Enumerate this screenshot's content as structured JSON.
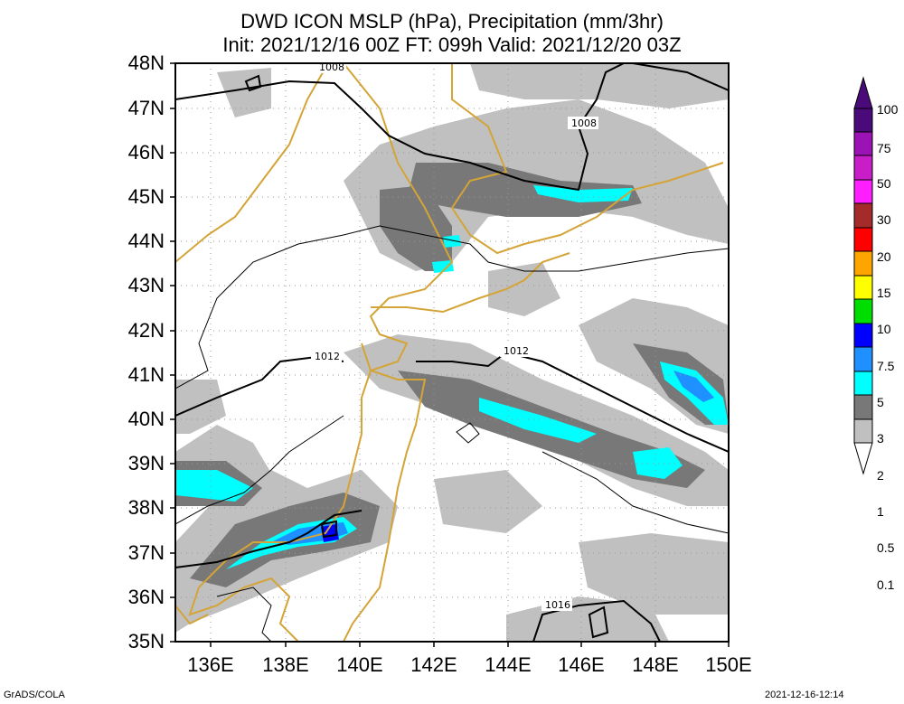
{
  "title_line1": "DWD ICON MSLP (hPa), Precipitation (mm/3hr)",
  "title_line2": "Init: 2021/12/16 00Z  FT: 099h  Valid: 2021/12/20 03Z",
  "lat_labels": [
    "48N",
    "47N",
    "46N",
    "45N",
    "44N",
    "43N",
    "42N",
    "41N",
    "40N",
    "39N",
    "38N",
    "37N",
    "36N",
    "35N"
  ],
  "lon_labels": [
    "136E",
    "138E",
    "140E",
    "142E",
    "144E",
    "146E",
    "148E",
    "150E"
  ],
  "isobar_labels": [
    "1008",
    "1008",
    "1012",
    "1012",
    "1016"
  ],
  "colorbar": {
    "levels": [
      "100",
      "75",
      "50",
      "30",
      "20",
      "15",
      "10",
      "7.5",
      "5",
      "3",
      "2",
      "1",
      "0.5",
      "0.1"
    ],
    "colors": [
      "#4b0a7a",
      "#9b12b5",
      "#c81ec8",
      "#ff1eff",
      "#a52a2a",
      "#ff0000",
      "#ffa500",
      "#ffff00",
      "#00dd00",
      "#0000ff",
      "#1e90ff",
      "#00ffff",
      "#787878",
      "#c0c0c0"
    ]
  },
  "footer_left": "GrADS/COLA",
  "footer_right": "2021-12-16-12:14"
}
